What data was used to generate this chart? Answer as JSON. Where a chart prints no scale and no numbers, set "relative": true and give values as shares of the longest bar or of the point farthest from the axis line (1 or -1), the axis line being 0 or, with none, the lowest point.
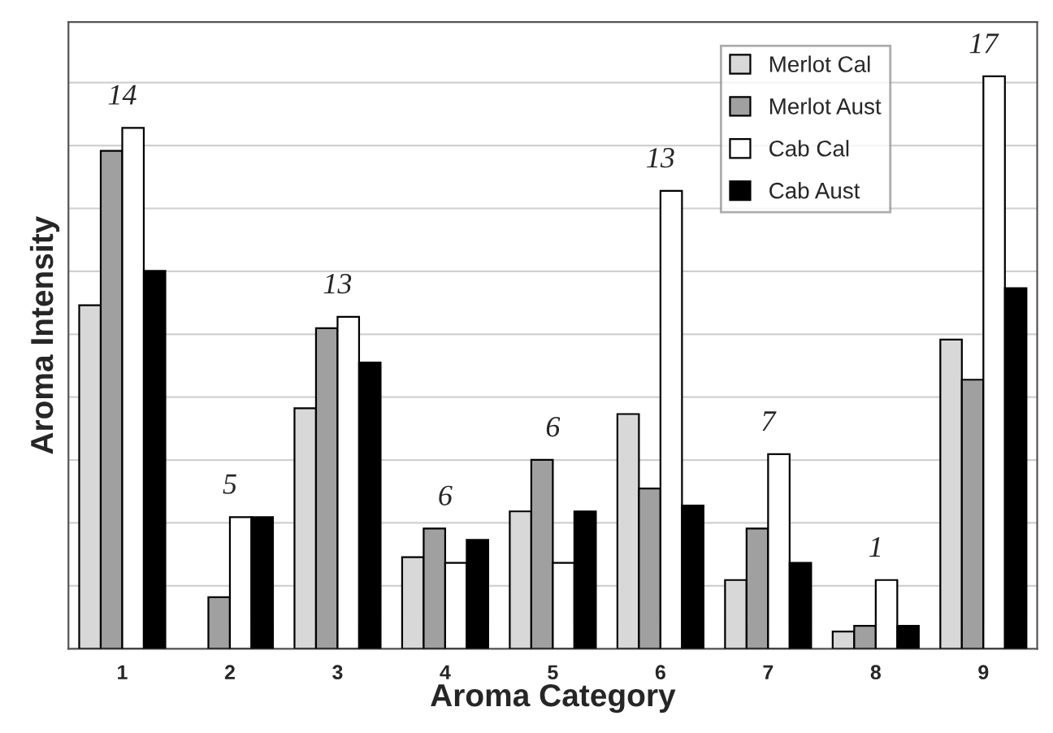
{
  "chart_data": {
    "type": "bar",
    "relative": true,
    "xlabel": "Aroma Category",
    "ylabel": "Aroma Intensity",
    "categories": [
      "1",
      "2",
      "3",
      "4",
      "5",
      "6",
      "7",
      "8",
      "9"
    ],
    "series": [
      {
        "name": "Merlot Cal",
        "color": "#d8d8d8",
        "values": [
          0.6,
          null,
          0.42,
          0.16,
          0.24,
          0.41,
          0.12,
          0.03,
          0.54
        ]
      },
      {
        "name": "Merlot Aust",
        "color": "#a0a0a0",
        "values": [
          0.87,
          0.09,
          0.56,
          0.21,
          0.33,
          0.28,
          0.21,
          0.04,
          0.47
        ]
      },
      {
        "name": "Cab Cal",
        "color": "#ffffff",
        "values": [
          0.91,
          0.23,
          0.58,
          0.15,
          0.15,
          0.8,
          0.34,
          0.12,
          1
        ]
      },
      {
        "name": "Cab Aust",
        "color": "#000000",
        "values": [
          0.66,
          0.23,
          0.5,
          0.19,
          0.24,
          0.25,
          0.15,
          0.04,
          0.63
        ]
      }
    ],
    "annotations": [
      "14",
      "5",
      "13",
      "6",
      "6",
      "13",
      "7",
      "1",
      "17"
    ],
    "grid": "y",
    "legend": "top right",
    "tick_labels": "x"
  }
}
